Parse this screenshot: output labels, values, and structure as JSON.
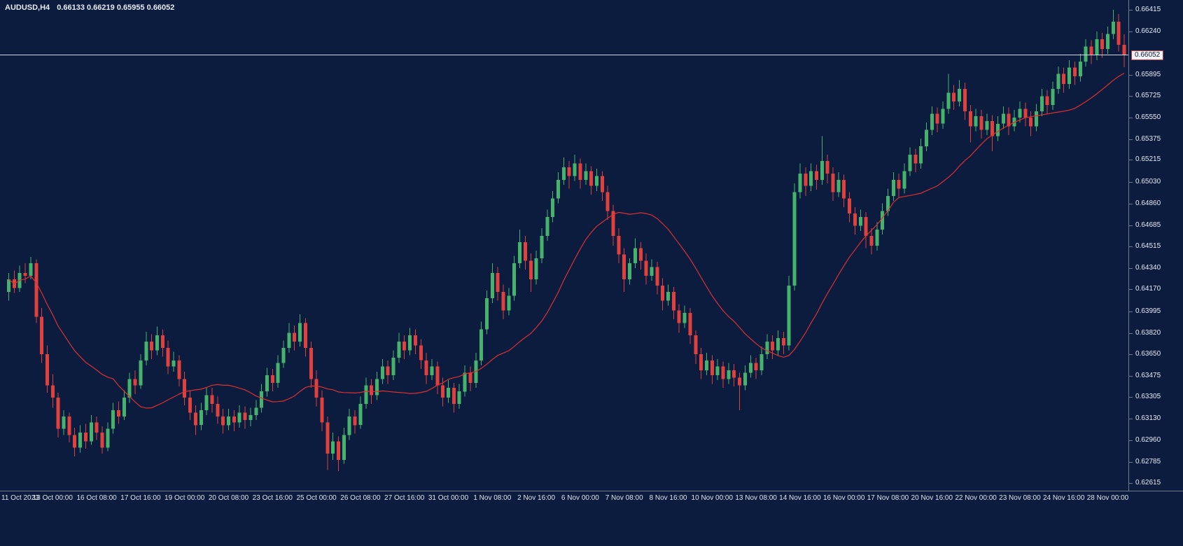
{
  "header": {
    "symbol_period": "AUDUSD,H4",
    "ohlc_text": "0.66133 0.66219 0.65955 0.66052"
  },
  "price_axis": {
    "labels": [
      "0.66415",
      "0.66240",
      "0.65895",
      "0.65725",
      "0.65550",
      "0.65375",
      "0.65215",
      "0.65030",
      "0.64860",
      "0.64685",
      "0.64515",
      "0.64340",
      "0.64170",
      "0.63995",
      "0.63820",
      "0.63650",
      "0.63475",
      "0.63305",
      "0.63130",
      "0.62960",
      "0.62785",
      "0.62615"
    ],
    "current_price_label": "0.66052"
  },
  "time_axis": {
    "labels": [
      "11 Oct 2023",
      "13 Oct 00:00",
      "16 Oct 08:00",
      "17 Oct 16:00",
      "19 Oct 00:00",
      "20 Oct 08:00",
      "23 Oct 16:00",
      "25 Oct 00:00",
      "26 Oct 08:00",
      "27 Oct 16:00",
      "31 Oct 00:00",
      "1 Nov 08:00",
      "2 Nov 16:00",
      "6 Nov 00:00",
      "7 Nov 08:00",
      "8 Nov 16:00",
      "10 Nov 00:00",
      "13 Nov 08:00",
      "14 Nov 16:00",
      "16 Nov 00:00",
      "17 Nov 08:00",
      "20 Nov 16:00",
      "22 Nov 00:00",
      "23 Nov 08:00",
      "24 Nov 16:00",
      "28 Nov 00:00"
    ]
  },
  "chart_data": {
    "type": "candlestick",
    "symbol": "AUDUSD",
    "timeframe": "H4",
    "title": "AUDUSD,H4",
    "current_candle": {
      "open": 0.66133,
      "high": 0.66219,
      "low": 0.65955,
      "close": 0.66052
    },
    "current_price": 0.66052,
    "y_axis": {
      "min": 0.62615,
      "max": 0.66415
    },
    "candles_per_label": 8,
    "grid": "off",
    "legend": "none",
    "moving_average": {
      "type": "SMA",
      "period": 20,
      "color": "#e03030"
    },
    "colors": {
      "background": "#0b1c3e",
      "up": "#45b36b",
      "down": "#e0413d",
      "ma": "#e03030",
      "price_line": "#cfd6e4",
      "axis_text": "#e8ebf1",
      "separator": "#6d7a8e",
      "price_box_bg": "#f3f5f8",
      "price_box_border": "#c43b3b"
    },
    "candles": [
      [
        0.6415,
        0.643,
        0.6408,
        0.6425
      ],
      [
        0.6425,
        0.6432,
        0.6414,
        0.6418
      ],
      [
        0.6418,
        0.6436,
        0.6415,
        0.643
      ],
      [
        0.643,
        0.6438,
        0.6422,
        0.6428
      ],
      [
        0.6428,
        0.6443,
        0.6425,
        0.6438
      ],
      [
        0.6438,
        0.6441,
        0.639,
        0.6395
      ],
      [
        0.6395,
        0.6402,
        0.6358,
        0.6365
      ],
      [
        0.6365,
        0.6372,
        0.6334,
        0.634
      ],
      [
        0.634,
        0.6349,
        0.6322,
        0.633
      ],
      [
        0.633,
        0.6334,
        0.6298,
        0.6305
      ],
      [
        0.6305,
        0.632,
        0.63,
        0.6315
      ],
      [
        0.6315,
        0.6318,
        0.6294,
        0.63
      ],
      [
        0.63,
        0.6306,
        0.6283,
        0.629
      ],
      [
        0.629,
        0.6308,
        0.6286,
        0.6302
      ],
      [
        0.6302,
        0.6309,
        0.6289,
        0.6295
      ],
      [
        0.6295,
        0.6316,
        0.6292,
        0.631
      ],
      [
        0.631,
        0.6315,
        0.6296,
        0.6302
      ],
      [
        0.6302,
        0.6307,
        0.6285,
        0.629
      ],
      [
        0.629,
        0.631,
        0.6287,
        0.6305
      ],
      [
        0.6305,
        0.6326,
        0.6301,
        0.632
      ],
      [
        0.632,
        0.6327,
        0.6309,
        0.6315
      ],
      [
        0.6315,
        0.6336,
        0.6312,
        0.633
      ],
      [
        0.633,
        0.635,
        0.6326,
        0.6345
      ],
      [
        0.6345,
        0.6352,
        0.6333,
        0.634
      ],
      [
        0.634,
        0.6365,
        0.6337,
        0.636
      ],
      [
        0.636,
        0.6383,
        0.6356,
        0.6375
      ],
      [
        0.6375,
        0.6381,
        0.6361,
        0.6368
      ],
      [
        0.6368,
        0.6387,
        0.6364,
        0.638
      ],
      [
        0.638,
        0.6385,
        0.6363,
        0.637
      ],
      [
        0.637,
        0.6376,
        0.6349,
        0.6355
      ],
      [
        0.6355,
        0.6367,
        0.6351,
        0.636
      ],
      [
        0.636,
        0.6364,
        0.6339,
        0.6345
      ],
      [
        0.6345,
        0.6351,
        0.6324,
        0.633
      ],
      [
        0.633,
        0.6336,
        0.6312,
        0.6318
      ],
      [
        0.6318,
        0.6324,
        0.63,
        0.6308
      ],
      [
        0.6308,
        0.6326,
        0.6304,
        0.632
      ],
      [
        0.632,
        0.6338,
        0.6316,
        0.6332
      ],
      [
        0.6332,
        0.6338,
        0.6318,
        0.6325
      ],
      [
        0.6325,
        0.6331,
        0.6309,
        0.6315
      ],
      [
        0.6315,
        0.6321,
        0.6301,
        0.6308
      ],
      [
        0.6308,
        0.6321,
        0.6304,
        0.6315
      ],
      [
        0.6315,
        0.632,
        0.6303,
        0.631
      ],
      [
        0.631,
        0.6324,
        0.6306,
        0.6318
      ],
      [
        0.6318,
        0.6323,
        0.6305,
        0.6312
      ],
      [
        0.6312,
        0.6322,
        0.6307,
        0.6316
      ],
      [
        0.6316,
        0.6328,
        0.6312,
        0.6322
      ],
      [
        0.6322,
        0.6341,
        0.6318,
        0.6335
      ],
      [
        0.6335,
        0.6354,
        0.6331,
        0.6348
      ],
      [
        0.6348,
        0.6353,
        0.6335,
        0.6342
      ],
      [
        0.6342,
        0.6364,
        0.6338,
        0.6358
      ],
      [
        0.6358,
        0.6376,
        0.6354,
        0.637
      ],
      [
        0.637,
        0.639,
        0.6366,
        0.6382
      ],
      [
        0.6382,
        0.6388,
        0.6368,
        0.6375
      ],
      [
        0.6375,
        0.6397,
        0.6371,
        0.639
      ],
      [
        0.639,
        0.6394,
        0.6363,
        0.637
      ],
      [
        0.637,
        0.6375,
        0.6338,
        0.6345
      ],
      [
        0.6345,
        0.6352,
        0.6323,
        0.633
      ],
      [
        0.633,
        0.6336,
        0.6303,
        0.631
      ],
      [
        0.631,
        0.6315,
        0.6272,
        0.6285
      ],
      [
        0.6285,
        0.6302,
        0.628,
        0.6295
      ],
      [
        0.6295,
        0.6299,
        0.6271,
        0.628
      ],
      [
        0.628,
        0.6306,
        0.6277,
        0.63
      ],
      [
        0.63,
        0.6321,
        0.6296,
        0.6315
      ],
      [
        0.6315,
        0.632,
        0.6301,
        0.6308
      ],
      [
        0.6308,
        0.6331,
        0.6305,
        0.6325
      ],
      [
        0.6325,
        0.6346,
        0.6321,
        0.634
      ],
      [
        0.634,
        0.6345,
        0.6325,
        0.6332
      ],
      [
        0.6332,
        0.6351,
        0.6328,
        0.6345
      ],
      [
        0.6345,
        0.6361,
        0.6341,
        0.6355
      ],
      [
        0.6355,
        0.636,
        0.6341,
        0.6348
      ],
      [
        0.6348,
        0.6368,
        0.6344,
        0.6362
      ],
      [
        0.6362,
        0.6382,
        0.6358,
        0.6375
      ],
      [
        0.6375,
        0.638,
        0.6361,
        0.6368
      ],
      [
        0.6368,
        0.6386,
        0.6364,
        0.638
      ],
      [
        0.638,
        0.6385,
        0.6365,
        0.6372
      ],
      [
        0.6372,
        0.6377,
        0.6353,
        0.636
      ],
      [
        0.636,
        0.6366,
        0.6341,
        0.6348
      ],
      [
        0.6348,
        0.6361,
        0.6344,
        0.6355
      ],
      [
        0.6355,
        0.6359,
        0.6333,
        0.634
      ],
      [
        0.634,
        0.6346,
        0.6323,
        0.633
      ],
      [
        0.633,
        0.6344,
        0.6326,
        0.6338
      ],
      [
        0.6338,
        0.6342,
        0.6318,
        0.6325
      ],
      [
        0.6325,
        0.6341,
        0.6321,
        0.6335
      ],
      [
        0.6335,
        0.6356,
        0.6331,
        0.635
      ],
      [
        0.635,
        0.6355,
        0.6335,
        0.6342
      ],
      [
        0.6342,
        0.6366,
        0.6338,
        0.636
      ],
      [
        0.636,
        0.6391,
        0.6356,
        0.6385
      ],
      [
        0.6385,
        0.6416,
        0.6381,
        0.641
      ],
      [
        0.641,
        0.6438,
        0.6406,
        0.643
      ],
      [
        0.643,
        0.6435,
        0.6408,
        0.6415
      ],
      [
        0.6415,
        0.6421,
        0.6393,
        0.64
      ],
      [
        0.64,
        0.6418,
        0.6396,
        0.6412
      ],
      [
        0.6412,
        0.6444,
        0.6408,
        0.6438
      ],
      [
        0.6438,
        0.6465,
        0.6434,
        0.6455
      ],
      [
        0.6455,
        0.646,
        0.6433,
        0.644
      ],
      [
        0.644,
        0.6446,
        0.6415,
        0.6425
      ],
      [
        0.6425,
        0.6448,
        0.6421,
        0.6442
      ],
      [
        0.6442,
        0.6466,
        0.6438,
        0.646
      ],
      [
        0.646,
        0.6481,
        0.6456,
        0.6475
      ],
      [
        0.6475,
        0.6496,
        0.6471,
        0.649
      ],
      [
        0.649,
        0.6511,
        0.6486,
        0.6505
      ],
      [
        0.6505,
        0.6523,
        0.6501,
        0.6515
      ],
      [
        0.6515,
        0.652,
        0.6498,
        0.6508
      ],
      [
        0.6508,
        0.6525,
        0.6504,
        0.6518
      ],
      [
        0.6518,
        0.6522,
        0.6498,
        0.6505
      ],
      [
        0.6505,
        0.6518,
        0.6501,
        0.6512
      ],
      [
        0.6512,
        0.6516,
        0.6493,
        0.65
      ],
      [
        0.65,
        0.6514,
        0.6496,
        0.6508
      ],
      [
        0.6508,
        0.6512,
        0.6488,
        0.6495
      ],
      [
        0.6495,
        0.65,
        0.6473,
        0.648
      ],
      [
        0.648,
        0.6485,
        0.6452,
        0.646
      ],
      [
        0.646,
        0.6466,
        0.6438,
        0.6445
      ],
      [
        0.6445,
        0.645,
        0.6415,
        0.6425
      ],
      [
        0.6425,
        0.6442,
        0.6421,
        0.6438
      ],
      [
        0.6438,
        0.6458,
        0.6434,
        0.645
      ],
      [
        0.645,
        0.6455,
        0.6433,
        0.644
      ],
      [
        0.644,
        0.6446,
        0.6421,
        0.6428
      ],
      [
        0.6428,
        0.6441,
        0.6424,
        0.6435
      ],
      [
        0.6435,
        0.6439,
        0.6413,
        0.642
      ],
      [
        0.642,
        0.6426,
        0.64,
        0.6408
      ],
      [
        0.6408,
        0.6421,
        0.6404,
        0.6415
      ],
      [
        0.6415,
        0.6419,
        0.6393,
        0.64
      ],
      [
        0.64,
        0.6405,
        0.6382,
        0.639
      ],
      [
        0.639,
        0.6404,
        0.6386,
        0.6398
      ],
      [
        0.6398,
        0.6402,
        0.6373,
        0.638
      ],
      [
        0.638,
        0.6384,
        0.6357,
        0.6365
      ],
      [
        0.6365,
        0.637,
        0.6345,
        0.6352
      ],
      [
        0.6352,
        0.6366,
        0.6348,
        0.636
      ],
      [
        0.636,
        0.6364,
        0.6341,
        0.6348
      ],
      [
        0.6348,
        0.6361,
        0.6344,
        0.6355
      ],
      [
        0.6355,
        0.6359,
        0.6338,
        0.6345
      ],
      [
        0.6345,
        0.6358,
        0.6341,
        0.6352
      ],
      [
        0.6352,
        0.6357,
        0.6339,
        0.6346
      ],
      [
        0.6346,
        0.635,
        0.632,
        0.634
      ],
      [
        0.634,
        0.6356,
        0.6336,
        0.635
      ],
      [
        0.635,
        0.6364,
        0.6346,
        0.6358
      ],
      [
        0.6358,
        0.6362,
        0.6345,
        0.6352
      ],
      [
        0.6352,
        0.6371,
        0.6348,
        0.6365
      ],
      [
        0.6365,
        0.6381,
        0.6361,
        0.6375
      ],
      [
        0.6375,
        0.638,
        0.6361,
        0.6368
      ],
      [
        0.6368,
        0.6384,
        0.6364,
        0.6378
      ],
      [
        0.6378,
        0.6383,
        0.6365,
        0.6372
      ],
      [
        0.6372,
        0.6428,
        0.6368,
        0.642
      ],
      [
        0.642,
        0.6502,
        0.6416,
        0.6495
      ],
      [
        0.6495,
        0.6518,
        0.649,
        0.651
      ],
      [
        0.651,
        0.6515,
        0.6492,
        0.65
      ],
      [
        0.65,
        0.6518,
        0.6496,
        0.6512
      ],
      [
        0.6512,
        0.6517,
        0.6497,
        0.6505
      ],
      [
        0.6505,
        0.654,
        0.6501,
        0.652
      ],
      [
        0.652,
        0.6525,
        0.6502,
        0.651
      ],
      [
        0.651,
        0.6515,
        0.6488,
        0.6495
      ],
      [
        0.6495,
        0.6511,
        0.6491,
        0.6505
      ],
      [
        0.6505,
        0.6509,
        0.6483,
        0.649
      ],
      [
        0.649,
        0.6495,
        0.6471,
        0.6478
      ],
      [
        0.6478,
        0.6483,
        0.6461,
        0.6468
      ],
      [
        0.6468,
        0.6481,
        0.6464,
        0.6475
      ],
      [
        0.6475,
        0.6479,
        0.645,
        0.646
      ],
      [
        0.646,
        0.6466,
        0.6445,
        0.6452
      ],
      [
        0.6452,
        0.6471,
        0.6448,
        0.6465
      ],
      [
        0.6465,
        0.6486,
        0.6461,
        0.648
      ],
      [
        0.648,
        0.6498,
        0.6476,
        0.6492
      ],
      [
        0.6492,
        0.6511,
        0.6488,
        0.6505
      ],
      [
        0.6505,
        0.651,
        0.6491,
        0.6498
      ],
      [
        0.6498,
        0.6518,
        0.6494,
        0.6512
      ],
      [
        0.6512,
        0.6531,
        0.6508,
        0.6525
      ],
      [
        0.6525,
        0.653,
        0.6511,
        0.6518
      ],
      [
        0.6518,
        0.6538,
        0.6514,
        0.6532
      ],
      [
        0.6532,
        0.6551,
        0.6528,
        0.6545
      ],
      [
        0.6545,
        0.6564,
        0.6541,
        0.6558
      ],
      [
        0.6558,
        0.6563,
        0.6543,
        0.655
      ],
      [
        0.655,
        0.6568,
        0.6546,
        0.6562
      ],
      [
        0.6562,
        0.659,
        0.6558,
        0.6575
      ],
      [
        0.6575,
        0.6581,
        0.6561,
        0.6568
      ],
      [
        0.6568,
        0.6585,
        0.6564,
        0.6578
      ],
      [
        0.6578,
        0.6583,
        0.6553,
        0.656
      ],
      [
        0.656,
        0.6565,
        0.6535,
        0.6548
      ],
      [
        0.6548,
        0.6562,
        0.6544,
        0.6556
      ],
      [
        0.6556,
        0.6561,
        0.6538,
        0.6545
      ],
      [
        0.6545,
        0.6558,
        0.6541,
        0.6552
      ],
      [
        0.6552,
        0.6557,
        0.6528,
        0.654
      ],
      [
        0.654,
        0.6556,
        0.6536,
        0.655
      ],
      [
        0.655,
        0.6564,
        0.6546,
        0.6558
      ],
      [
        0.6558,
        0.6563,
        0.6541,
        0.6548
      ],
      [
        0.6548,
        0.6561,
        0.6544,
        0.6555
      ],
      [
        0.6555,
        0.6568,
        0.6551,
        0.6562
      ],
      [
        0.6562,
        0.6567,
        0.6548,
        0.6555
      ],
      [
        0.6555,
        0.656,
        0.654,
        0.6548
      ],
      [
        0.6548,
        0.6566,
        0.6544,
        0.656
      ],
      [
        0.656,
        0.6578,
        0.6556,
        0.6572
      ],
      [
        0.6572,
        0.6577,
        0.6558,
        0.6565
      ],
      [
        0.6565,
        0.6584,
        0.6561,
        0.6578
      ],
      [
        0.6578,
        0.6596,
        0.6574,
        0.659
      ],
      [
        0.659,
        0.6595,
        0.6575,
        0.6582
      ],
      [
        0.6582,
        0.6601,
        0.6578,
        0.6595
      ],
      [
        0.6595,
        0.66,
        0.6581,
        0.6588
      ],
      [
        0.6588,
        0.6606,
        0.6584,
        0.66
      ],
      [
        0.66,
        0.6618,
        0.6596,
        0.6612
      ],
      [
        0.6612,
        0.6617,
        0.6598,
        0.6605
      ],
      [
        0.6605,
        0.6624,
        0.6601,
        0.6618
      ],
      [
        0.6618,
        0.6623,
        0.6603,
        0.661
      ],
      [
        0.661,
        0.6628,
        0.6606,
        0.6622
      ],
      [
        0.6622,
        0.66415,
        0.6618,
        0.6632
      ],
      [
        0.6632,
        0.6638,
        0.6608,
        0.66133
      ],
      [
        0.66133,
        0.66219,
        0.65955,
        0.66052
      ]
    ]
  }
}
